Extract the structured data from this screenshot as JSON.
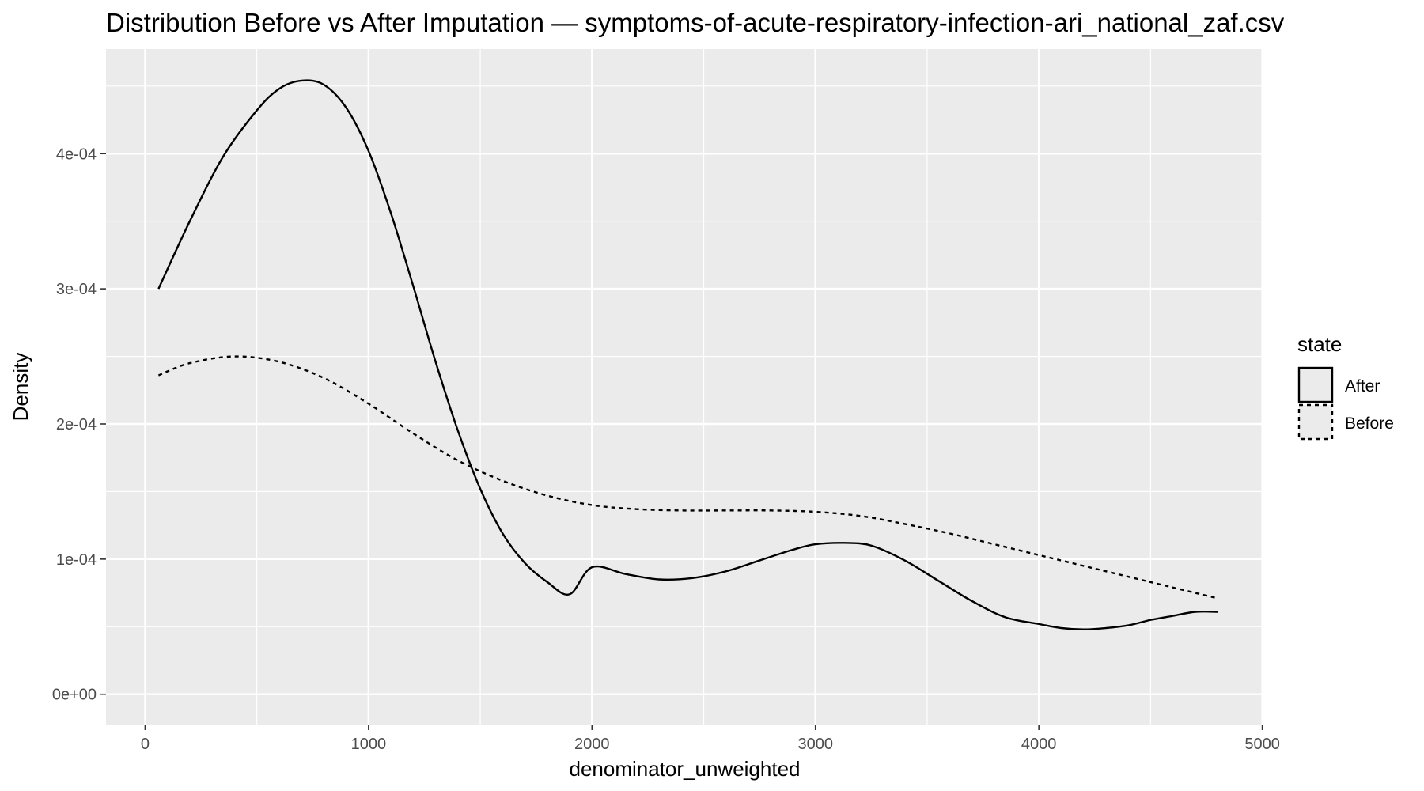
{
  "chart_data": {
    "type": "line",
    "title": "Distribution Before vs After Imputation — symptoms-of-acute-respiratory-infection-ari_national_zaf.csv",
    "xlabel": "denominator_unweighted",
    "ylabel": "Density",
    "xlim": [
      -175,
      5005
    ],
    "ylim": [
      -2.24e-05,
      0.0004774
    ],
    "x_ticks": [
      0,
      1000,
      2000,
      3000,
      4000,
      5000
    ],
    "x_tick_labels": [
      "0",
      "1000",
      "2000",
      "3000",
      "4000",
      "5000"
    ],
    "y_ticks": [
      0,
      0.0001,
      0.0002,
      0.0003,
      0.0004
    ],
    "y_tick_labels": [
      "0e+00",
      "1e-04",
      "2e-04",
      "3e-04",
      "4e-04"
    ],
    "grid": true,
    "legend": {
      "title": "state",
      "position": "right"
    },
    "series": [
      {
        "name": "After",
        "linetype": "solid",
        "color": "#000000",
        "x": [
          60,
          200,
          350,
          500,
          600,
          700,
          800,
          900,
          1000,
          1100,
          1200,
          1300,
          1400,
          1500,
          1600,
          1700,
          1800,
          1900,
          2000,
          2150,
          2300,
          2450,
          2600,
          2750,
          2900,
          3000,
          3130,
          3250,
          3400,
          3550,
          3700,
          3850,
          4000,
          4100,
          4200,
          4300,
          4400,
          4500,
          4600,
          4700,
          4800
        ],
        "y": [
          0.0003,
          0.00035,
          0.000398,
          0.000432,
          0.000448,
          0.000454,
          0.000451,
          0.000434,
          0.000402,
          0.000356,
          0.000302,
          0.000246,
          0.000195,
          0.000152,
          0.000119,
          9.7e-05,
          8.3e-05,
          7.4e-05,
          9.4e-05,
          8.9e-05,
          8.5e-05,
          8.6e-05,
          9.1e-05,
          9.9e-05,
          0.000107,
          0.000111,
          0.000112,
          0.00011,
          9.9e-05,
          8.4e-05,
          6.9e-05,
          5.7e-05,
          5.2e-05,
          4.9e-05,
          4.8e-05,
          4.9e-05,
          5.1e-05,
          5.5e-05,
          5.8e-05,
          6.1e-05,
          6.1e-05
        ]
      },
      {
        "name": "Before",
        "linetype": "dashed",
        "color": "#000000",
        "x": [
          60,
          200,
          400,
          600,
          800,
          1000,
          1200,
          1400,
          1600,
          1800,
          2000,
          2200,
          2400,
          2600,
          2800,
          3000,
          3200,
          3400,
          3600,
          3800,
          4000,
          4200,
          4400,
          4600,
          4800
        ],
        "y": [
          0.000236,
          0.000245,
          0.00025,
          0.000246,
          0.000234,
          0.000215,
          0.000193,
          0.000173,
          0.000158,
          0.000147,
          0.00014,
          0.000137,
          0.000136,
          0.000136,
          0.000136,
          0.000135,
          0.000132,
          0.000126,
          0.000119,
          0.000111,
          0.000103,
          9.5e-05,
          8.7e-05,
          7.9e-05,
          7.1e-05
        ]
      }
    ]
  }
}
